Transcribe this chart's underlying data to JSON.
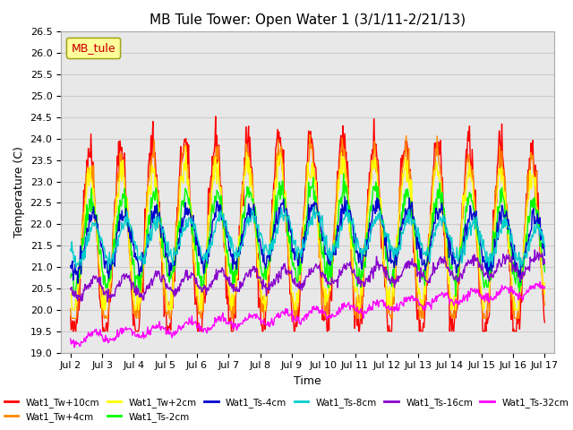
{
  "title": "MB Tule Tower: Open Water 1 (3/1/11-2/21/13)",
  "xlabel": "Time",
  "ylabel": "Temperature (C)",
  "ylim": [
    19.0,
    26.5
  ],
  "yticks": [
    19.0,
    19.5,
    20.0,
    20.5,
    21.0,
    21.5,
    22.0,
    22.5,
    23.0,
    23.5,
    24.0,
    24.5,
    25.0,
    25.5,
    26.0,
    26.5
  ],
  "xtick_labels": [
    "Jul 2",
    "Jul 3",
    "Jul 4",
    "Jul 5",
    "Jul 6",
    "Jul 7",
    "Jul 8",
    "Jul 9",
    "Jul 10",
    "Jul 11",
    "Jul 12",
    "Jul 13",
    "Jul 14",
    "Jul 15",
    "Jul 16",
    "Jul 17"
  ],
  "n_days": 15,
  "legend_label": "MB_tule",
  "legend_box_color": "#ffff99",
  "legend_text_color": "#cc0000",
  "series": [
    {
      "name": "Wat1_Tw+10cm",
      "color": "#ff0000"
    },
    {
      "name": "Wat1_Tw+4cm",
      "color": "#ff8800"
    },
    {
      "name": "Wat1_Tw+2cm",
      "color": "#ffff00"
    },
    {
      "name": "Wat1_Ts-2cm",
      "color": "#00ff00"
    },
    {
      "name": "Wat1_Ts-4cm",
      "color": "#0000cc"
    },
    {
      "name": "Wat1_Ts-8cm",
      "color": "#00cccc"
    },
    {
      "name": "Wat1_Ts-16cm",
      "color": "#8800cc"
    },
    {
      "name": "Wat1_Ts-32cm",
      "color": "#ff00ff"
    }
  ],
  "background_color": "#ffffff",
  "grid_color": "#cccccc"
}
